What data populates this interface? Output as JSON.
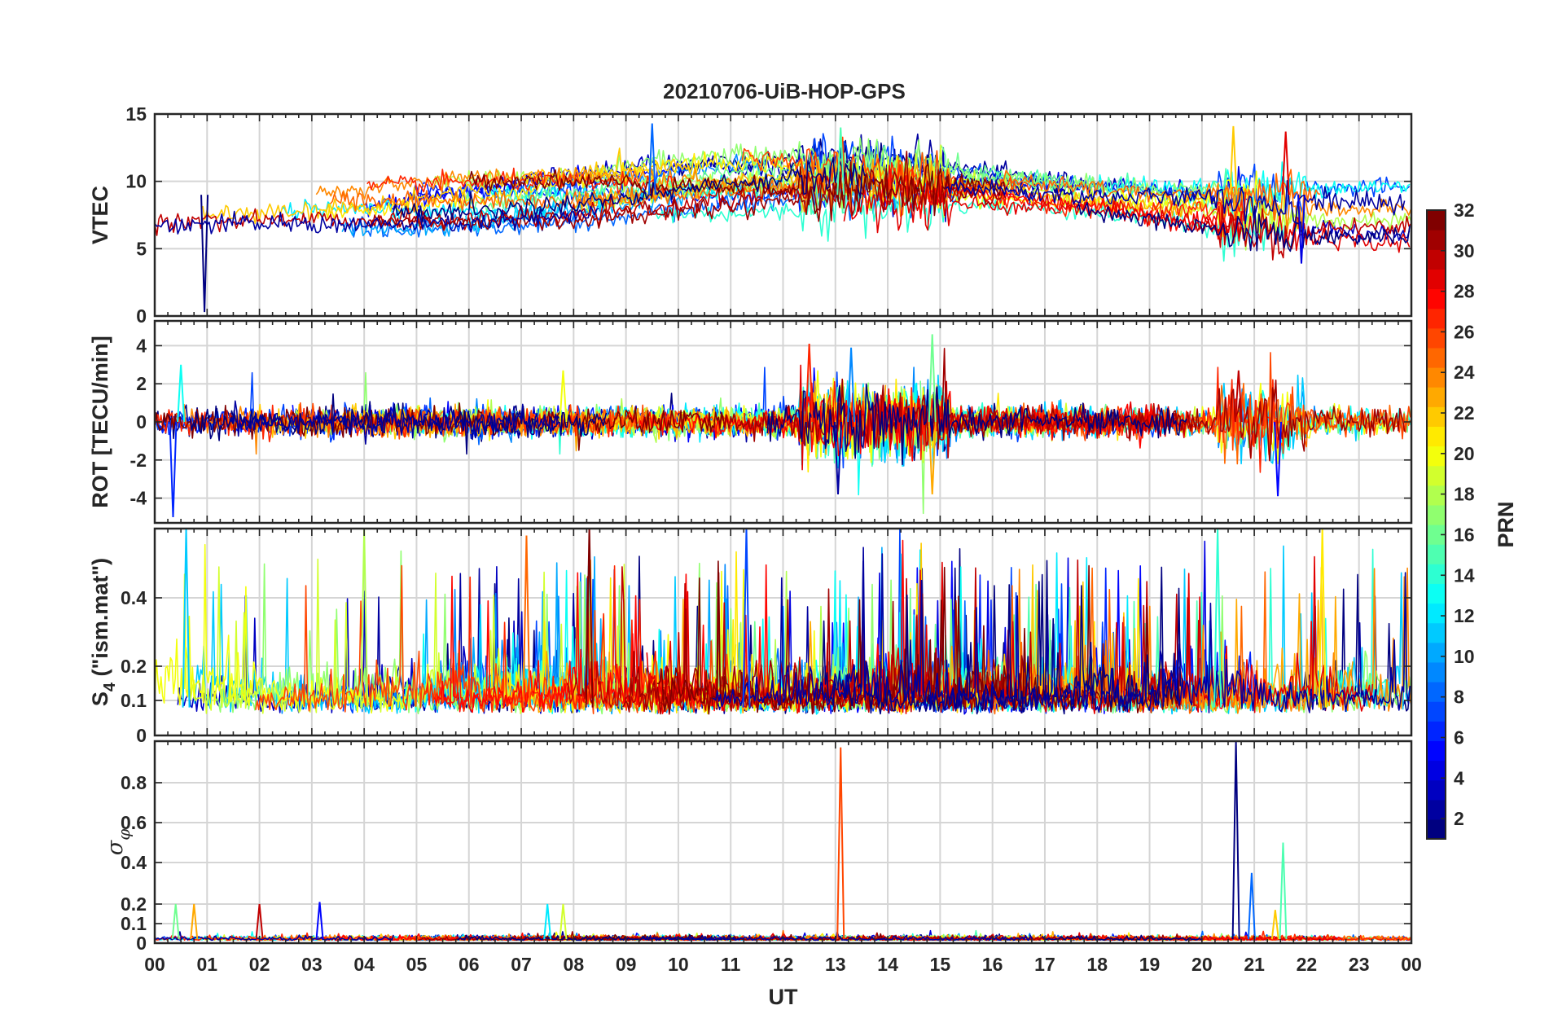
{
  "chart_data": {
    "type": "line",
    "title": "20210706-UiB-HOP-GPS",
    "xlabel": "UT",
    "xlim": [
      0,
      24
    ],
    "x_tick_labels": [
      "00",
      "01",
      "02",
      "03",
      "04",
      "05",
      "06",
      "07",
      "08",
      "09",
      "10",
      "11",
      "12",
      "13",
      "14",
      "15",
      "16",
      "17",
      "18",
      "19",
      "20",
      "21",
      "22",
      "23",
      "00"
    ],
    "grid": true,
    "colormap": "jet",
    "colors": {
      "axis": "#262626",
      "grid": "#d5d5d5",
      "background": "#ffffff"
    },
    "colorbar": {
      "label": "PRN",
      "range": [
        1,
        32
      ],
      "tick_labels": [
        "2",
        "4",
        "6",
        "8",
        "10",
        "12",
        "14",
        "16",
        "18",
        "20",
        "22",
        "24",
        "26",
        "28",
        "30",
        "32"
      ]
    },
    "panels": [
      {
        "ylabel": "VTEC",
        "ylim": [
          0,
          15
        ],
        "y_tick_values": [
          0,
          5,
          10,
          15
        ],
        "y_tick_labels": [
          "0",
          "5",
          "10",
          "15"
        ],
        "description_of_series": "one trace per PRN satellite",
        "events": [
          {
            "x": 0.95,
            "y": 0.3,
            "note": "dip"
          },
          {
            "x": 9.5,
            "y": 14.3,
            "note": "max"
          },
          {
            "x": 13.1,
            "y": 14.0
          },
          {
            "x": 20.6,
            "y": 14.1
          },
          {
            "x": 21.6,
            "y": 13.7
          },
          {
            "x": 21.9,
            "y": 3.9,
            "note": "min"
          }
        ]
      },
      {
        "ylabel": "ROT [TECU/min]",
        "ylim": [
          -5.3,
          5.3
        ],
        "y_tick_values": [
          -4,
          -2,
          0,
          2,
          4
        ],
        "y_tick_labels": [
          "-4",
          "-2",
          "0",
          "2",
          "4"
        ],
        "events": [
          {
            "x": 0.35,
            "y": -5.0
          },
          {
            "x": 0.5,
            "y": 3.0
          },
          {
            "x": 7.8,
            "y": 2.7
          },
          {
            "x": 12.5,
            "y": 4.1
          },
          {
            "x": 13.05,
            "y": -3.8
          },
          {
            "x": 13.3,
            "y": 3.9
          },
          {
            "x": 14.85,
            "y": 4.6
          },
          {
            "x": 14.85,
            "y": -3.8
          },
          {
            "x": 20.7,
            "y": 2.7
          },
          {
            "x": 21.45,
            "y": -3.9
          }
        ]
      },
      {
        "ylabel": "S4 (\"ism.mat\")",
        "ylabel_main": "S",
        "ylabel_sub": "4",
        "ylabel_rest": " (\"ism.mat\")",
        "ylim": [
          0,
          0.6
        ],
        "y_tick_values": [
          0,
          0.1,
          0.2,
          0.4
        ],
        "y_tick_labels": [
          "0",
          "0.1",
          "0.2",
          "0.4"
        ],
        "nonlinear_axis": true,
        "events": [
          {
            "x": 0.6,
            "y": 0.6
          },
          {
            "x": 4.0,
            "y": 0.6
          },
          {
            "x": 7.1,
            "y": 0.58
          },
          {
            "x": 8.3,
            "y": 0.6
          },
          {
            "x": 11.3,
            "y": 0.6
          },
          {
            "x": 20.3,
            "y": 0.6
          },
          {
            "x": 22.3,
            "y": 0.6
          }
        ]
      },
      {
        "ylabel": "σφ",
        "ylabel_main": "σ",
        "ylabel_sub": "φ",
        "ylim": [
          0,
          1.0
        ],
        "y_tick_values": [
          0,
          0.1,
          0.2,
          0.4,
          0.6,
          0.8
        ],
        "y_tick_labels": [
          "0",
          "0.1",
          "0.2",
          "0.4",
          "0.6",
          "0.8"
        ],
        "nonlinear_axis": true,
        "events": [
          {
            "x": 0.4,
            "y": 0.2
          },
          {
            "x": 0.75,
            "y": 0.2
          },
          {
            "x": 2.0,
            "y": 0.2
          },
          {
            "x": 3.15,
            "y": 0.21
          },
          {
            "x": 7.5,
            "y": 0.2
          },
          {
            "x": 7.8,
            "y": 0.2
          },
          {
            "x": 13.1,
            "y": 0.97
          },
          {
            "x": 20.65,
            "y": 1.0
          },
          {
            "x": 20.95,
            "y": 0.35
          },
          {
            "x": 21.55,
            "y": 0.5
          },
          {
            "x": 21.4,
            "y": 0.17
          }
        ]
      }
    ]
  }
}
